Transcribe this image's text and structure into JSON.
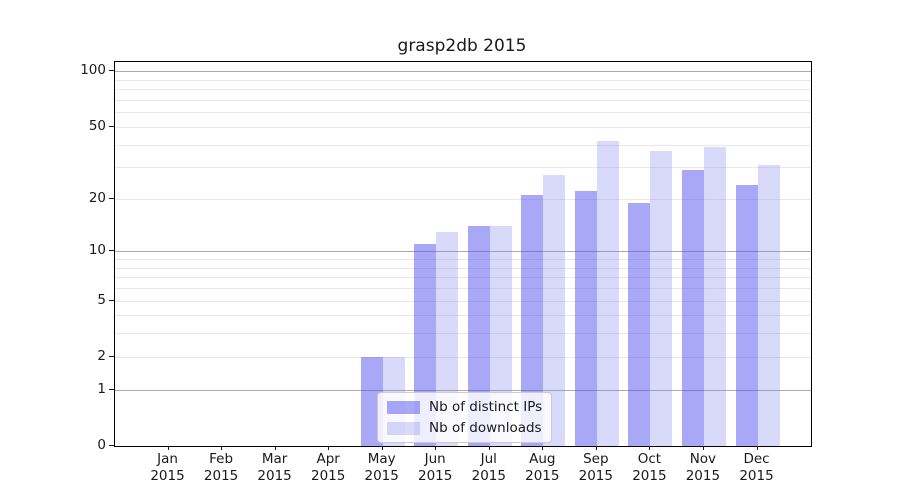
{
  "chart_data": {
    "type": "bar",
    "title": "grasp2db 2015",
    "categories": [
      "Jan",
      "Feb",
      "Mar",
      "Apr",
      "May",
      "Jun",
      "Jul",
      "Aug",
      "Sep",
      "Oct",
      "Nov",
      "Dec"
    ],
    "x_year_label": "2015",
    "series": [
      {
        "name": "Nb of distinct IPs",
        "key": "distinct-ips",
        "fill": "rgba(82,82,240,0.5)",
        "values": [
          0,
          0,
          0,
          0,
          2,
          11,
          14,
          21,
          22,
          19,
          29,
          24
        ]
      },
      {
        "name": "Nb of downloads",
        "key": "downloads",
        "fill": "rgba(130,130,235,0.3)",
        "values": [
          0,
          0,
          0,
          0,
          2,
          13,
          14,
          27,
          42,
          37,
          39,
          31
        ]
      }
    ],
    "yscale": "log1p",
    "ylim": [
      0,
      112
    ],
    "yticks": [
      0,
      1,
      2,
      5,
      10,
      20,
      50,
      100
    ],
    "gridlines": {
      "major": [
        1,
        10,
        100
      ],
      "minor": [
        2,
        3,
        4,
        5,
        6,
        7,
        8,
        9,
        20,
        30,
        40,
        50,
        60,
        70,
        80,
        90
      ],
      "major_color": "#ababab",
      "minor_color": "#e8e8e8"
    },
    "legend_position": "lower-center",
    "grid": true
  }
}
